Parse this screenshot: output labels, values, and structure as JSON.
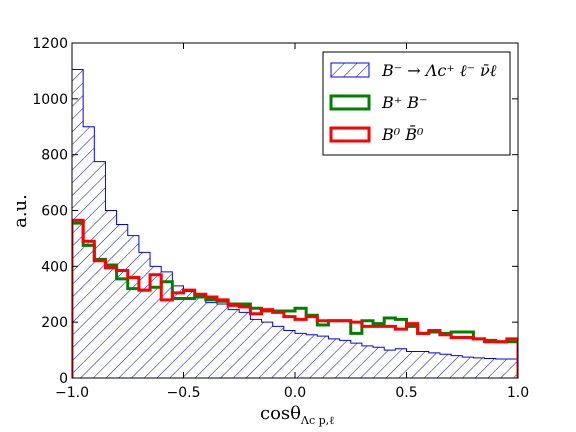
{
  "chart_data": {
    "type": "histogram",
    "xlim": [
      -1.0,
      1.0
    ],
    "ylim": [
      0,
      1200
    ],
    "x_ticks": [
      "−1.0",
      "−0.5",
      "0.0",
      "0.5",
      "1.0"
    ],
    "x_tick_values": [
      -1.0,
      -0.5,
      0.0,
      0.5,
      1.0
    ],
    "y_ticks": [
      "0",
      "200",
      "400",
      "600",
      "800",
      "1000",
      "1200"
    ],
    "y_tick_values": [
      0,
      200,
      400,
      600,
      800,
      1000,
      1200
    ],
    "xlabel": "cosθ",
    "xlabel_subscript": "Λc p,ℓ",
    "ylabel": "a.u.",
    "legend_position": "top-right",
    "bin_edges": [
      -1.0,
      -0.95,
      -0.9,
      -0.85,
      -0.8,
      -0.75,
      -0.7,
      -0.65,
      -0.6,
      -0.55,
      -0.5,
      -0.45,
      -0.4,
      -0.35,
      -0.3,
      -0.25,
      -0.2,
      -0.15,
      -0.1,
      -0.05,
      0.0,
      0.05,
      0.1,
      0.15,
      0.2,
      0.25,
      0.3,
      0.35,
      0.4,
      0.45,
      0.5,
      0.55,
      0.6,
      0.65,
      0.7,
      0.75,
      0.8,
      0.85,
      0.9,
      0.95,
      1.0
    ],
    "series": [
      {
        "name": "B⁻ → Λc⁺ ℓ⁻ ν̄ℓ",
        "style": "hatched",
        "color": "#0000ff",
        "values": [
          1105,
          900,
          775,
          600,
          550,
          510,
          450,
          400,
          380,
          330,
          310,
          290,
          270,
          265,
          245,
          235,
          210,
          200,
          185,
          170,
          160,
          155,
          150,
          140,
          135,
          125,
          115,
          110,
          100,
          105,
          95,
          95,
          90,
          85,
          80,
          75,
          72,
          70,
          68,
          68
        ]
      },
      {
        "name": "B⁺ B⁻",
        "style": "step",
        "color": "#008000",
        "values": [
          555,
          475,
          425,
          405,
          355,
          320,
          315,
          325,
          345,
          285,
          285,
          290,
          280,
          275,
          265,
          265,
          250,
          240,
          240,
          240,
          250,
          225,
          190,
          205,
          205,
          160,
          205,
          195,
          215,
          210,
          185,
          160,
          165,
          160,
          165,
          165,
          140,
          135,
          130,
          130
        ]
      },
      {
        "name": "B⁰ B̄⁰",
        "style": "step",
        "color": "#ff0000",
        "values": [
          565,
          490,
          420,
          395,
          385,
          360,
          315,
          370,
          280,
          305,
          315,
          300,
          290,
          280,
          260,
          255,
          230,
          245,
          235,
          220,
          210,
          220,
          205,
          205,
          205,
          200,
          185,
          185,
          185,
          175,
          195,
          160,
          170,
          155,
          145,
          145,
          140,
          130,
          130,
          140
        ]
      }
    ]
  }
}
